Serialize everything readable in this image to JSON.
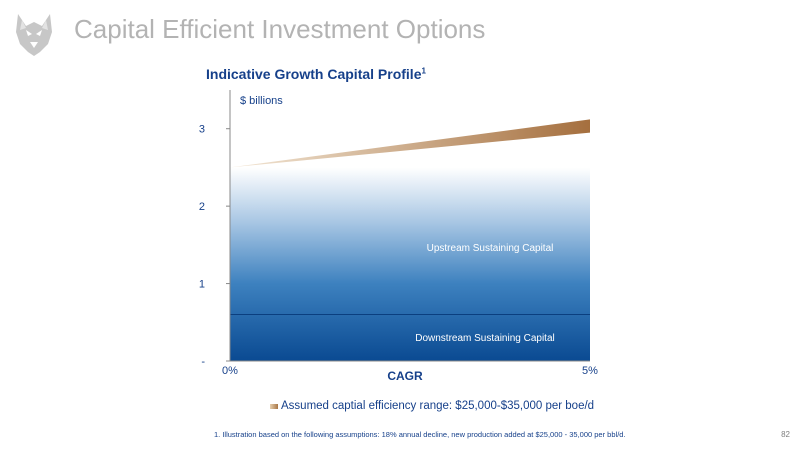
{
  "slide": {
    "title": "Capital Efficient Investment Options",
    "page_number": "82",
    "logo_icon": "husky-dog-head-icon"
  },
  "footnote": "1. Illustration based on the following assumptions: 18% annual decline, new production added at $25,000 - 35,000 per bbl/d.",
  "chart_data": {
    "type": "area",
    "title": "Indicative Growth Capital Profile",
    "title_footnote_marker": "1",
    "ylabel": "$ billions",
    "xlabel": "CAGR",
    "x_ticks": [
      "0%",
      "5%"
    ],
    "x_range": [
      0,
      5
    ],
    "ylim": [
      0,
      3.5
    ],
    "y_ticks": [
      {
        "value": 0,
        "label": "-"
      },
      {
        "value": 1,
        "label": "1"
      },
      {
        "value": 2,
        "label": "2"
      },
      {
        "value": 3,
        "label": "3"
      }
    ],
    "series": [
      {
        "name": "Downstream Sustaining Capital",
        "x": [
          0,
          5
        ],
        "lower": [
          0,
          0
        ],
        "upper": [
          0.6,
          0.6
        ],
        "color": "#0e4f97"
      },
      {
        "name": "Upstream Sustaining Capital",
        "x": [
          0,
          5
        ],
        "lower": [
          0.6,
          0.6
        ],
        "upper": [
          2.5,
          2.5
        ],
        "color": "#3a7fbe"
      },
      {
        "name": "Assumed captial efficiency range: $25,000-$35,000 per boe/d",
        "x": [
          0,
          5
        ],
        "lower": [
          2.5,
          2.5
        ],
        "upper": [
          2.5,
          2.5
        ],
        "upper_end_low": 2.95,
        "upper_end_high": 3.12,
        "color": "#b8895a"
      }
    ],
    "legend": {
      "position": "bottom",
      "entries": [
        "Assumed captial efficiency range: $25,000-$35,000 per boe/d"
      ]
    },
    "grid": false
  }
}
